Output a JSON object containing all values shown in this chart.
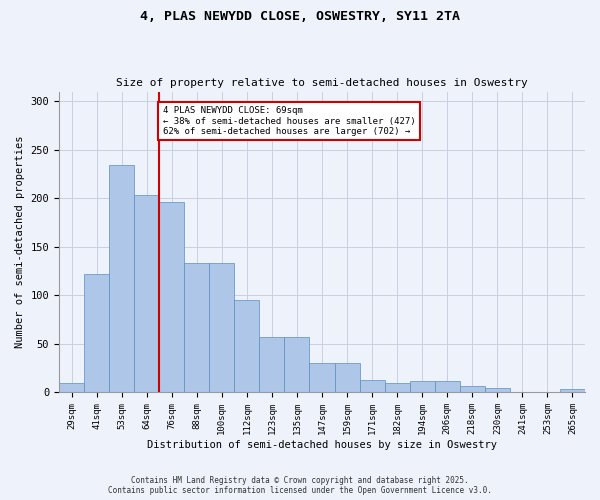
{
  "title1": "4, PLAS NEWYDD CLOSE, OSWESTRY, SY11 2TA",
  "title2": "Size of property relative to semi-detached houses in Oswestry",
  "xlabel": "Distribution of semi-detached houses by size in Oswestry",
  "ylabel": "Number of semi-detached properties",
  "categories": [
    "29sqm",
    "41sqm",
    "53sqm",
    "64sqm",
    "76sqm",
    "88sqm",
    "100sqm",
    "112sqm",
    "123sqm",
    "135sqm",
    "147sqm",
    "159sqm",
    "171sqm",
    "182sqm",
    "194sqm",
    "206sqm",
    "218sqm",
    "230sqm",
    "241sqm",
    "253sqm",
    "265sqm"
  ],
  "values": [
    10,
    122,
    234,
    203,
    196,
    133,
    133,
    95,
    57,
    57,
    30,
    30,
    13,
    10,
    12,
    12,
    7,
    5,
    1,
    0,
    4
  ],
  "bar_color": "#aec6e8",
  "bar_edge_color": "#5a8fc2",
  "property_size_label": "4 PLAS NEWYDD CLOSE: 69sqm",
  "smaller_pct": 38,
  "smaller_count": 427,
  "larger_pct": 62,
  "larger_count": 702,
  "vline_color": "#cc0000",
  "annotation_box_edge": "#cc0000",
  "ylim": [
    0,
    310
  ],
  "yticks": [
    0,
    50,
    100,
    150,
    200,
    250,
    300
  ],
  "grid_color": "#c8d0e0",
  "bg_color": "#eef2fa",
  "footer1": "Contains HM Land Registry data © Crown copyright and database right 2025.",
  "footer2": "Contains public sector information licensed under the Open Government Licence v3.0."
}
